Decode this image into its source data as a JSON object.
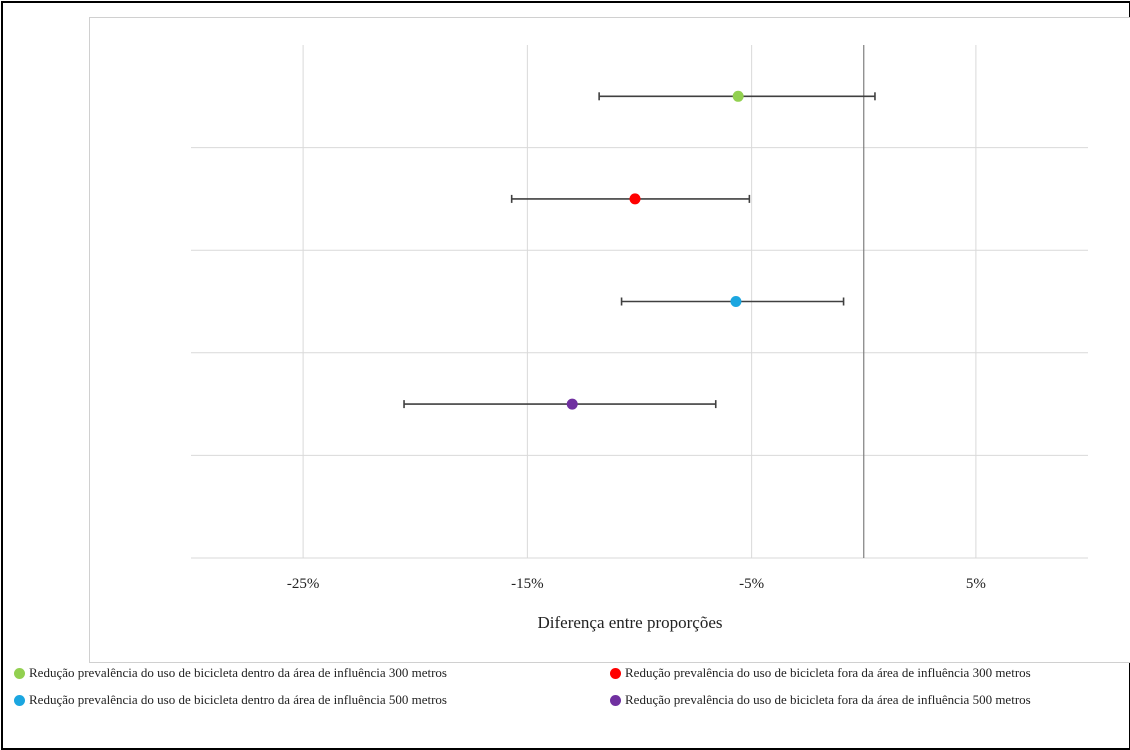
{
  "chart_data": {
    "type": "scatter",
    "subtype": "forest-plot",
    "xlabel": "Diferença entre proporções",
    "xlim": [
      -30,
      10
    ],
    "xticks": [
      -25,
      -15,
      -5,
      5
    ],
    "xtick_labels": [
      "-25%",
      "-15%",
      "-5%",
      "5%"
    ],
    "reference_line_x": 0,
    "grid": true,
    "legend_position": "bottom",
    "series": [
      {
        "name": "Redução prevalência do uso de bicicleta dentro da área de influência 300 metros",
        "color": "#92d050",
        "estimate": -5.6,
        "ci_low": -11.8,
        "ci_high": 0.5
      },
      {
        "name": "Redução prevalência do uso de bicicleta fora da área de influência 300 metros",
        "color": "#ff0000",
        "estimate": -10.2,
        "ci_low": -15.7,
        "ci_high": -5.1
      },
      {
        "name": "Redução prevalência do uso de bicicleta dentro da área de influência 500 metros",
        "color": "#1ba6e0",
        "estimate": -5.7,
        "ci_low": -10.8,
        "ci_high": -0.9
      },
      {
        "name": "Redução prevalência do uso de bicicleta fora da área de influência 500 metros",
        "color": "#7030a0",
        "estimate": -13.0,
        "ci_low": -20.5,
        "ci_high": -6.6
      }
    ]
  }
}
